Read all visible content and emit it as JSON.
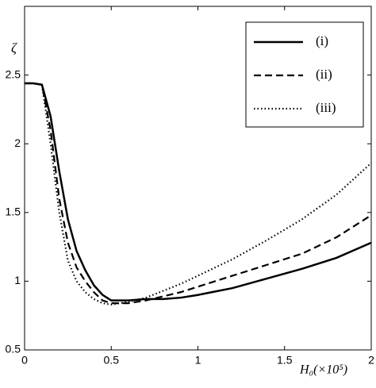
{
  "chart_data": {
    "type": "line",
    "y_label": "ζ",
    "x_label": "H₀(×10⁵)",
    "x": [
      0,
      0.05,
      0.1,
      0.15,
      0.2,
      0.25,
      0.3,
      0.35,
      0.4,
      0.45,
      0.5,
      0.6,
      0.7,
      0.8,
      0.9,
      1.0,
      1.2,
      1.4,
      1.6,
      1.8,
      2.0
    ],
    "series": [
      {
        "name": "(i)",
        "color": "#000000",
        "style": "solid",
        "values": [
          2.44,
          2.44,
          2.43,
          2.2,
          1.8,
          1.45,
          1.22,
          1.08,
          0.97,
          0.9,
          0.86,
          0.86,
          0.87,
          0.87,
          0.88,
          0.9,
          0.95,
          1.02,
          1.09,
          1.17,
          1.28
        ]
      },
      {
        "name": "(ii)",
        "color": "#000000",
        "style": "dashed",
        "values": [
          2.44,
          2.44,
          2.43,
          2.1,
          1.6,
          1.28,
          1.1,
          1.0,
          0.92,
          0.86,
          0.84,
          0.84,
          0.86,
          0.89,
          0.92,
          0.96,
          1.04,
          1.12,
          1.2,
          1.32,
          1.48
        ]
      },
      {
        "name": "(iii)",
        "color": "#000000",
        "style": "dotted",
        "values": [
          2.44,
          2.44,
          2.43,
          2.0,
          1.5,
          1.15,
          1.0,
          0.92,
          0.87,
          0.84,
          0.83,
          0.85,
          0.88,
          0.93,
          0.98,
          1.04,
          1.16,
          1.3,
          1.45,
          1.63,
          1.86
        ]
      }
    ],
    "xlim": [
      0,
      2
    ],
    "ylim": [
      0.5,
      3
    ],
    "xticks": [
      0,
      0.5,
      1,
      1.5,
      2
    ],
    "yticks": [
      0.5,
      1,
      1.5,
      2,
      2.5
    ],
    "legend": "upper right"
  }
}
